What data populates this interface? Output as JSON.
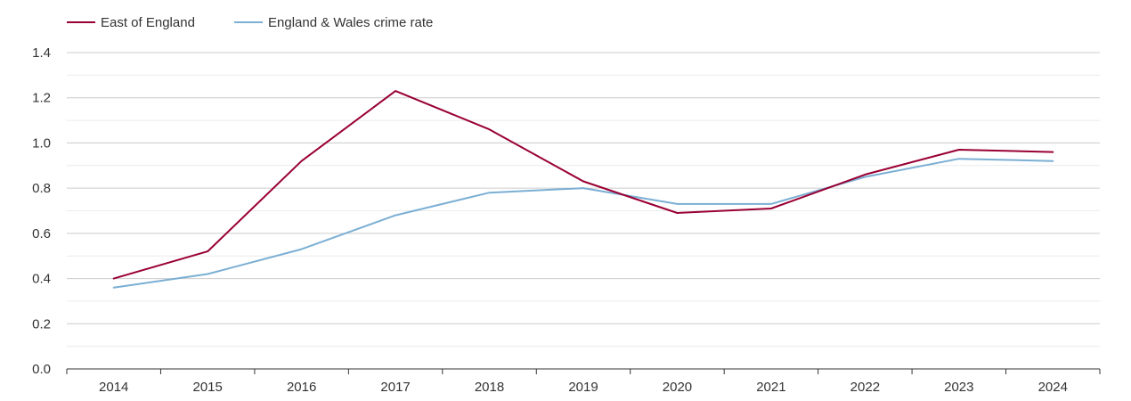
{
  "chart_data": {
    "type": "line",
    "title": "",
    "xlabel": "",
    "ylabel": "",
    "x": [
      "2014",
      "2015",
      "2016",
      "2017",
      "2018",
      "2019",
      "2020",
      "2021",
      "2022",
      "2023",
      "2024"
    ],
    "ylim": [
      0,
      1.4
    ],
    "yticks": [
      "0.0",
      "0.2",
      "0.4",
      "0.6",
      "0.8",
      "1.0",
      "1.2",
      "1.4"
    ],
    "grid": true,
    "legend_position": "top-left",
    "series": [
      {
        "name": "East of England",
        "color": "#990033",
        "values": [
          0.4,
          0.52,
          0.92,
          1.23,
          1.06,
          0.83,
          0.69,
          0.71,
          0.86,
          0.97,
          0.96
        ]
      },
      {
        "name": "England & Wales crime rate",
        "color": "#7bafd4",
        "values": [
          0.36,
          0.42,
          0.53,
          0.68,
          0.78,
          0.8,
          0.73,
          0.73,
          0.85,
          0.93,
          0.92
        ]
      }
    ]
  }
}
